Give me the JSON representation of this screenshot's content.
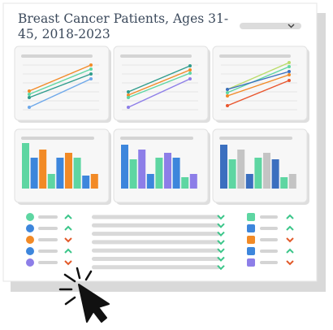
{
  "header": {
    "title": "Breast Cancer Patients, Ages 31-45, 2018-2023"
  }
}
